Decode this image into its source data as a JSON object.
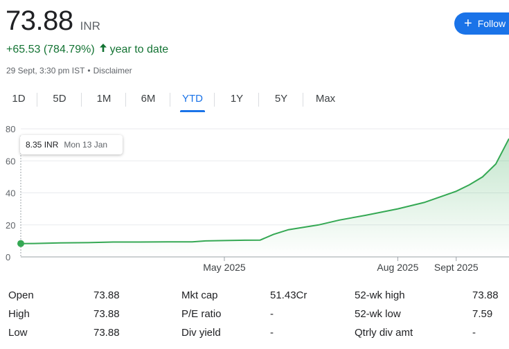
{
  "quote": {
    "price": "73.88",
    "currency": "INR",
    "change": "+65.53 (784.79%)",
    "period": "year to date",
    "timestamp": "29 Sept, 3:30 pm IST",
    "disclaimer": "Disclaimer"
  },
  "follow_label": "Follow",
  "tabs": [
    "1D",
    "5D",
    "1M",
    "6M",
    "YTD",
    "1Y",
    "5Y",
    "Max"
  ],
  "active_tab": "YTD",
  "tooltip": {
    "value": "8.35 INR",
    "date": "Mon 13 Jan"
  },
  "colors": {
    "accent": "#1a73e8",
    "positive": "#137333",
    "line": "#34a853"
  },
  "chart_data": {
    "type": "area",
    "y_ticks": [
      "0",
      "20",
      "40",
      "60",
      "80"
    ],
    "ylim": [
      0,
      80
    ],
    "x_labels": [
      {
        "label": "May 2025",
        "date": "2025-05-01"
      },
      {
        "label": "Aug 2025",
        "date": "2025-08-01"
      },
      {
        "label": "Sept 2025",
        "date": "2025-09-01"
      }
    ],
    "x_range": [
      "2025-01-13",
      "2025-09-29"
    ],
    "grid": true,
    "series": [
      {
        "points": [
          [
            "2025-01-13",
            8.35
          ],
          [
            "2025-01-20",
            8.4
          ],
          [
            "2025-02-03",
            8.8
          ],
          [
            "2025-02-17",
            8.9
          ],
          [
            "2025-03-03",
            9.3
          ],
          [
            "2025-03-17",
            9.3
          ],
          [
            "2025-04-01",
            9.4
          ],
          [
            "2025-04-14",
            9.4
          ],
          [
            "2025-04-21",
            10.0
          ],
          [
            "2025-05-01",
            10.2
          ],
          [
            "2025-05-12",
            10.4
          ],
          [
            "2025-05-20",
            10.5
          ],
          [
            "2025-05-27",
            14.0
          ],
          [
            "2025-06-04",
            17.0
          ],
          [
            "2025-06-20",
            20.0
          ],
          [
            "2025-07-01",
            23.0
          ],
          [
            "2025-07-15",
            26.0
          ],
          [
            "2025-08-01",
            30.0
          ],
          [
            "2025-08-15",
            34.0
          ],
          [
            "2025-09-01",
            41.0
          ],
          [
            "2025-09-08",
            45.0
          ],
          [
            "2025-09-15",
            50.0
          ],
          [
            "2025-09-22",
            58.0
          ],
          [
            "2025-09-29",
            73.88
          ]
        ]
      }
    ]
  },
  "stats": {
    "col1": [
      {
        "label": "Open",
        "value": "73.88"
      },
      {
        "label": "High",
        "value": "73.88"
      },
      {
        "label": "Low",
        "value": "73.88"
      }
    ],
    "col2": [
      {
        "label": "Mkt cap",
        "value": "51.43Cr"
      },
      {
        "label": "P/E ratio",
        "value": "-"
      },
      {
        "label": "Div yield",
        "value": "-"
      }
    ],
    "col3": [
      {
        "label": "52-wk high",
        "value": "73.88"
      },
      {
        "label": "52-wk low",
        "value": "7.59"
      },
      {
        "label": "Qtrly div amt",
        "value": "-"
      }
    ]
  }
}
